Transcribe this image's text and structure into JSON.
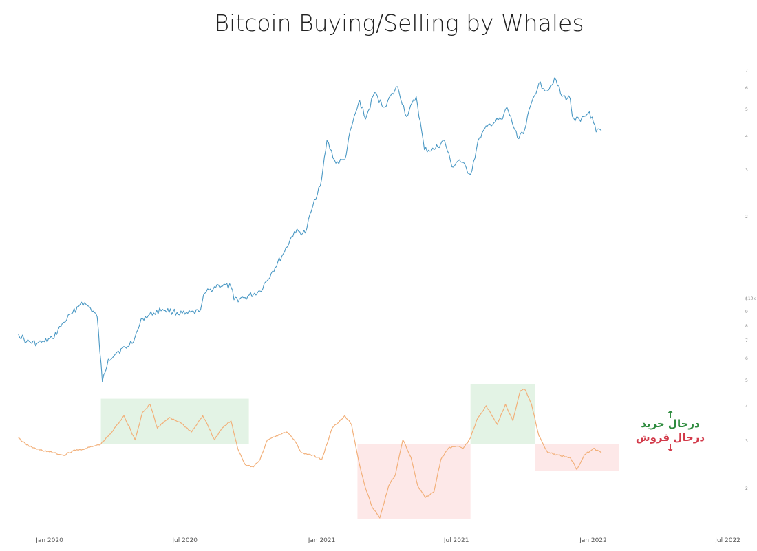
{
  "chart_data": {
    "type": "line",
    "title": "Bitcoin Buying/Selling by Whales",
    "x_ticks": [
      {
        "date": "2020-01-01",
        "label": "Jan 2020"
      },
      {
        "date": "2020-07-01",
        "label": "Jul 2020"
      },
      {
        "date": "2021-01-01",
        "label": "Jan 2021"
      },
      {
        "date": "2021-07-01",
        "label": "Jul 2021"
      },
      {
        "date": "2022-01-01",
        "label": "Jan 2022"
      },
      {
        "date": "2022-07-01",
        "label": "Jul 2022"
      }
    ],
    "y_right_ticks": [
      "7",
      "6",
      "5",
      "4",
      "3",
      "2",
      "$10k",
      "9",
      "8",
      "7",
      "6",
      "5",
      "4",
      "3",
      "2"
    ],
    "series": [
      {
        "color": "#4a98c4",
        "points": [
          [
            "2019-11-20",
            7.8
          ],
          [
            "2019-12-01",
            7.3
          ],
          [
            "2019-12-15",
            7.2
          ],
          [
            "2019-12-25",
            7.3
          ],
          [
            "2020-01-05",
            7.5
          ],
          [
            "2020-01-20",
            8.6
          ],
          [
            "2020-02-01",
            9.3
          ],
          [
            "2020-02-13",
            10.2
          ],
          [
            "2020-02-25",
            9.7
          ],
          [
            "2020-03-05",
            9.0
          ],
          [
            "2020-03-12",
            5.2
          ],
          [
            "2020-03-20",
            6.3
          ],
          [
            "2020-04-01",
            6.7
          ],
          [
            "2020-04-15",
            7.0
          ],
          [
            "2020-04-25",
            7.6
          ],
          [
            "2020-05-05",
            8.9
          ],
          [
            "2020-05-20",
            9.3
          ],
          [
            "2020-06-01",
            9.6
          ],
          [
            "2020-06-15",
            9.4
          ],
          [
            "2020-07-01",
            9.2
          ],
          [
            "2020-07-20",
            9.4
          ],
          [
            "2020-07-28",
            11.0
          ],
          [
            "2020-08-15",
            11.8
          ],
          [
            "2020-09-01",
            11.6
          ],
          [
            "2020-09-05",
            10.4
          ],
          [
            "2020-09-20",
            10.6
          ],
          [
            "2020-10-10",
            11.2
          ],
          [
            "2020-10-25",
            13.0
          ],
          [
            "2020-11-10",
            15.3
          ],
          [
            "2020-11-25",
            18.5
          ],
          [
            "2020-12-10",
            18.3
          ],
          [
            "2020-12-20",
            23.0
          ],
          [
            "2021-01-01",
            29.0
          ],
          [
            "2021-01-08",
            40.0
          ],
          [
            "2021-01-20",
            33.0
          ],
          [
            "2021-02-01",
            34.0
          ],
          [
            "2021-02-10",
            45.0
          ],
          [
            "2021-02-21",
            56.0
          ],
          [
            "2021-03-01",
            48.0
          ],
          [
            "2021-03-13",
            60.0
          ],
          [
            "2021-03-25",
            53.0
          ],
          [
            "2021-04-13",
            63.0
          ],
          [
            "2021-04-25",
            49.0
          ],
          [
            "2021-05-08",
            58.0
          ],
          [
            "2021-05-19",
            37.0
          ],
          [
            "2021-06-01",
            37.0
          ],
          [
            "2021-06-15",
            40.0
          ],
          [
            "2021-06-25",
            32.0
          ],
          [
            "2021-07-05",
            34.0
          ],
          [
            "2021-07-20",
            30.0
          ],
          [
            "2021-08-01",
            41.0
          ],
          [
            "2021-08-15",
            46.0
          ],
          [
            "2021-09-01",
            48.0
          ],
          [
            "2021-09-07",
            53.0
          ],
          [
            "2021-09-21",
            41.0
          ],
          [
            "2021-10-01",
            44.0
          ],
          [
            "2021-10-10",
            55.0
          ],
          [
            "2021-10-20",
            65.0
          ],
          [
            "2021-11-01",
            61.0
          ],
          [
            "2021-11-10",
            68.0
          ],
          [
            "2021-11-20",
            58.0
          ],
          [
            "2021-12-01",
            57.0
          ],
          [
            "2021-12-04",
            49.0
          ],
          [
            "2021-12-15",
            47.0
          ],
          [
            "2021-12-27",
            51.0
          ],
          [
            "2022-01-05",
            43.0
          ],
          [
            "2022-01-12",
            43.5
          ]
        ]
      },
      {
        "color": "#f2b07a",
        "points": [
          [
            "2019-11-20",
            3.35
          ],
          [
            "2019-12-01",
            3.18
          ],
          [
            "2019-12-15",
            3.08
          ],
          [
            "2020-01-01",
            3.02
          ],
          [
            "2020-01-20",
            2.94
          ],
          [
            "2020-02-01",
            3.04
          ],
          [
            "2020-02-20",
            3.1
          ],
          [
            "2020-03-10",
            3.2
          ],
          [
            "2020-03-25",
            3.5
          ],
          [
            "2020-04-10",
            3.95
          ],
          [
            "2020-04-25",
            3.3
          ],
          [
            "2020-05-05",
            4.05
          ],
          [
            "2020-05-15",
            4.3
          ],
          [
            "2020-05-25",
            3.6
          ],
          [
            "2020-06-10",
            3.9
          ],
          [
            "2020-06-25",
            3.75
          ],
          [
            "2020-07-10",
            3.5
          ],
          [
            "2020-07-25",
            3.95
          ],
          [
            "2020-08-10",
            3.3
          ],
          [
            "2020-08-20",
            3.6
          ],
          [
            "2020-09-01",
            3.8
          ],
          [
            "2020-09-10",
            3.1
          ],
          [
            "2020-09-20",
            2.75
          ],
          [
            "2020-10-01",
            2.7
          ],
          [
            "2020-10-10",
            2.85
          ],
          [
            "2020-10-20",
            3.3
          ],
          [
            "2020-11-01",
            3.4
          ],
          [
            "2020-11-15",
            3.5
          ],
          [
            "2020-11-25",
            3.3
          ],
          [
            "2020-12-05",
            3.0
          ],
          [
            "2020-12-20",
            2.95
          ],
          [
            "2021-01-01",
            2.85
          ],
          [
            "2021-01-15",
            3.6
          ],
          [
            "2021-02-01",
            3.95
          ],
          [
            "2021-02-10",
            3.7
          ],
          [
            "2021-02-20",
            2.8
          ],
          [
            "2021-03-01",
            2.3
          ],
          [
            "2021-03-10",
            2.0
          ],
          [
            "2021-03-20",
            1.85
          ],
          [
            "2021-04-01",
            2.35
          ],
          [
            "2021-04-10",
            2.55
          ],
          [
            "2021-04-20",
            3.3
          ],
          [
            "2021-05-01",
            2.9
          ],
          [
            "2021-05-10",
            2.35
          ],
          [
            "2021-05-20",
            2.15
          ],
          [
            "2021-06-01",
            2.25
          ],
          [
            "2021-06-10",
            2.85
          ],
          [
            "2021-06-20",
            3.1
          ],
          [
            "2021-07-01",
            3.15
          ],
          [
            "2021-07-10",
            3.1
          ],
          [
            "2021-07-20",
            3.35
          ],
          [
            "2021-07-28",
            3.8
          ],
          [
            "2021-08-10",
            4.25
          ],
          [
            "2021-08-25",
            3.7
          ],
          [
            "2021-09-05",
            4.3
          ],
          [
            "2021-09-15",
            3.8
          ],
          [
            "2021-09-25",
            4.75
          ],
          [
            "2021-10-01",
            4.8
          ],
          [
            "2021-10-10",
            4.3
          ],
          [
            "2021-10-20",
            3.4
          ],
          [
            "2021-11-01",
            3.0
          ],
          [
            "2021-11-15",
            2.95
          ],
          [
            "2021-12-01",
            2.9
          ],
          [
            "2021-12-10",
            2.65
          ],
          [
            "2021-12-20",
            2.95
          ],
          [
            "2022-01-01",
            3.1
          ],
          [
            "2022-01-12",
            3.0
          ]
        ]
      }
    ],
    "threshold": {
      "value": 3.2,
      "color": "#e8a0a8"
    },
    "zones": [
      {
        "type": "buy",
        "from": "2020-03-10",
        "to": "2020-09-25",
        "color": "#e3f3e5"
      },
      {
        "type": "sell",
        "from": "2021-02-18",
        "to": "2021-07-20",
        "color": "#fde8e8"
      },
      {
        "type": "buy",
        "from": "2021-07-20",
        "to": "2021-10-15",
        "color": "#e3f3e5"
      },
      {
        "type": "sell",
        "from": "2021-10-15",
        "to": "2022-02-05",
        "color": "#fde8e8"
      }
    ],
    "annotations": {
      "buy": {
        "text": "درحال خرید",
        "arrow": "↑",
        "color": "#2e8b3e"
      },
      "sell": {
        "text": "درحال فروش",
        "arrow": "↓",
        "color": "#d23a4a"
      }
    },
    "grid": false,
    "legend": "none"
  }
}
